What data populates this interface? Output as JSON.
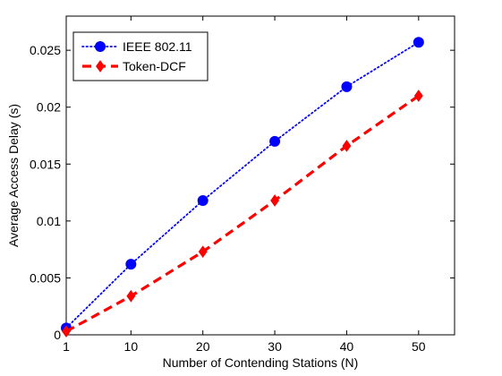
{
  "chart_data": {
    "type": "line",
    "title": "",
    "xlabel": "Number of Contending Stations (N)",
    "ylabel": "Average Access Delay (s)",
    "xlim": [
      1,
      55
    ],
    "ylim": [
      0,
      0.028
    ],
    "xticks": [
      1,
      10,
      20,
      30,
      40,
      50
    ],
    "xtick_labels": [
      "1",
      "10",
      "20",
      "30",
      "40",
      "50"
    ],
    "yticks": [
      0,
      0.005,
      0.01,
      0.015,
      0.02,
      0.025
    ],
    "ytick_labels": [
      "0",
      "0.005",
      "0.01",
      "0.015",
      "0.02",
      "0.025"
    ],
    "grid": false,
    "legend_position": "top-left",
    "x": [
      1,
      10,
      20,
      30,
      40,
      50
    ],
    "series": [
      {
        "name": "IEEE 802.11",
        "values": [
          0.0006,
          0.0062,
          0.0118,
          0.017,
          0.0218,
          0.0257
        ],
        "color": "#0000ff",
        "line_style": "dotted",
        "marker": "circle"
      },
      {
        "name": "Token-DCF",
        "values": [
          0.0003,
          0.0034,
          0.0073,
          0.0118,
          0.0166,
          0.021
        ],
        "color": "#ff0000",
        "line_style": "dashed",
        "marker": "diamond"
      }
    ]
  }
}
